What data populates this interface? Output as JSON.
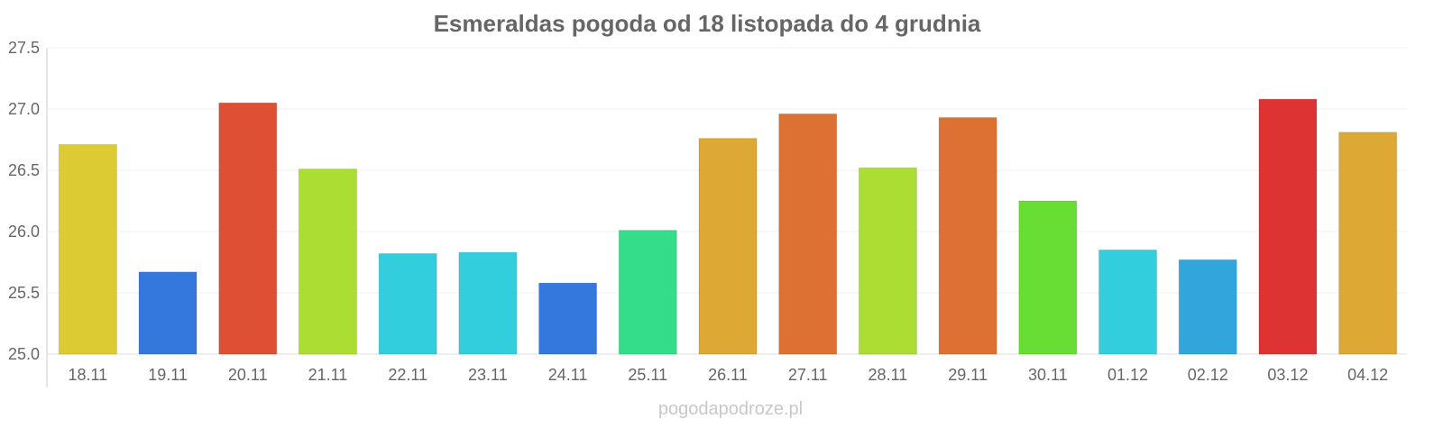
{
  "chart_data": {
    "type": "bar",
    "title": "Esmeraldas pogoda od 18 listopada do 4 grudnia",
    "xlabel": "",
    "ylabel": "",
    "ylim": [
      25.0,
      27.5
    ],
    "yticks": [
      "25.0",
      "25.5",
      "26.0",
      "26.5",
      "27.0",
      "27.5"
    ],
    "grid": true,
    "categories": [
      "18.11",
      "19.11",
      "20.11",
      "21.11",
      "22.11",
      "23.11",
      "24.11",
      "25.11",
      "26.11",
      "27.11",
      "28.11",
      "29.11",
      "30.11",
      "01.12",
      "02.12",
      "03.12",
      "04.12"
    ],
    "values": [
      26.71,
      25.67,
      27.05,
      26.51,
      25.82,
      25.83,
      25.58,
      26.01,
      26.76,
      26.96,
      26.52,
      26.93,
      26.25,
      25.85,
      25.77,
      27.08,
      26.81
    ],
    "colors": [
      "#dccb33",
      "#3478dd",
      "#dd5033",
      "#acdd33",
      "#33cedd",
      "#33cedd",
      "#3478dd",
      "#33dd8a",
      "#dda833",
      "#dd7033",
      "#acdd33",
      "#dd7033",
      "#68dd33",
      "#33cedd",
      "#33a5dd",
      "#dd3333",
      "#dda833"
    ]
  },
  "watermark": "pogodapodroze.pl"
}
